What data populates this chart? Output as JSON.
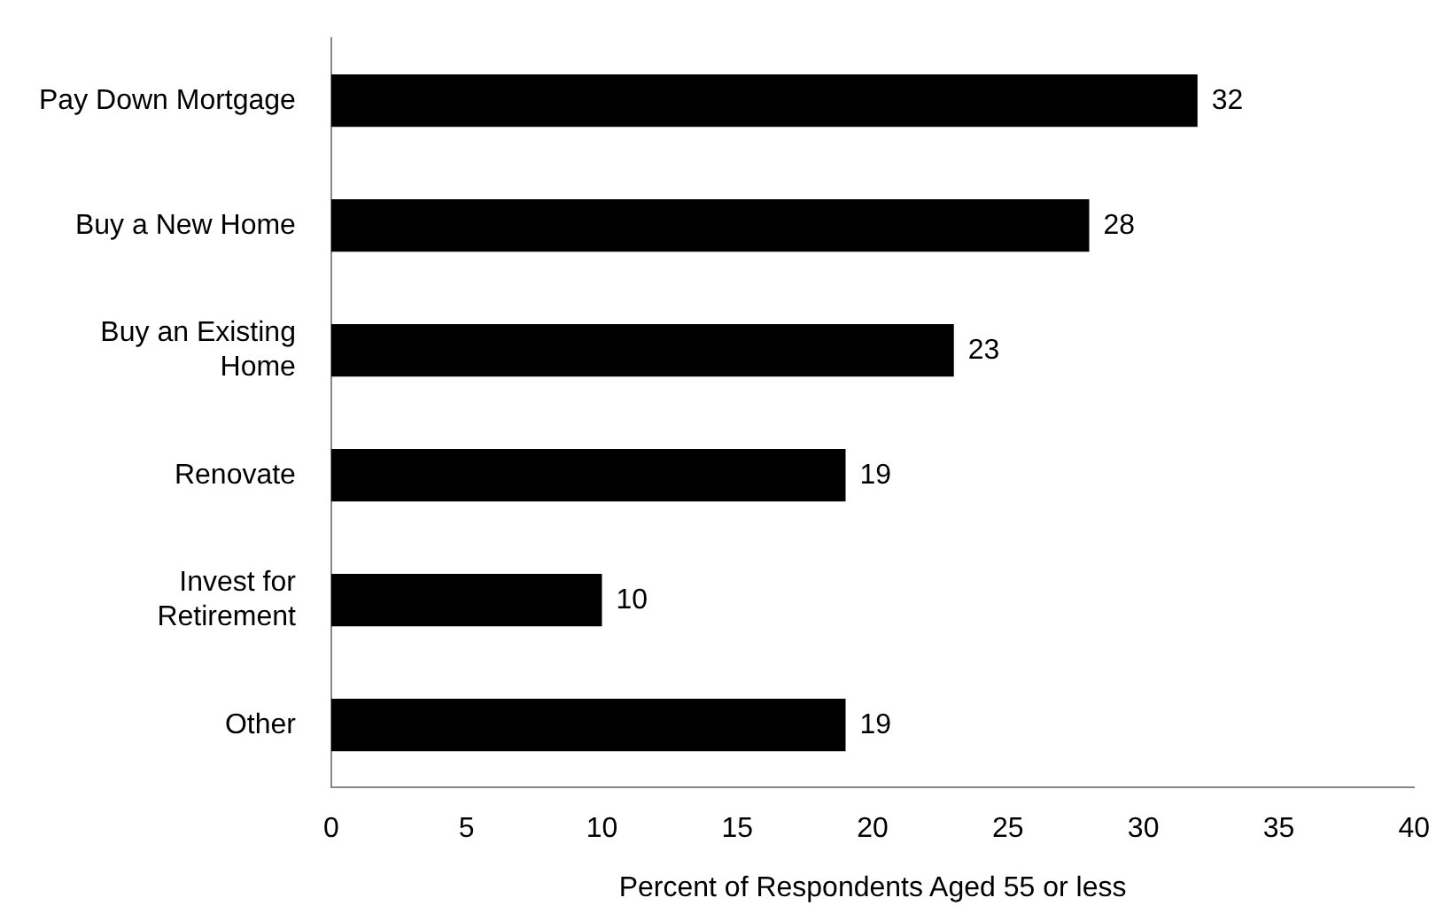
{
  "chart_data": {
    "type": "bar",
    "orientation": "horizontal",
    "xlabel": "Percent of Respondents Aged 55 or less",
    "categories": [
      "Pay Down Mortgage",
      "Buy a New Home",
      "Buy an Existing Home",
      "Renovate",
      "Invest for Retirement",
      "Other"
    ],
    "values": [
      32,
      28,
      23,
      19,
      10,
      19
    ],
    "color": "#000000",
    "xlim": [
      0,
      40
    ],
    "xticks": [
      0,
      5,
      10,
      15,
      20,
      25,
      30,
      35,
      40
    ],
    "grid": false,
    "data_labels": true
  }
}
